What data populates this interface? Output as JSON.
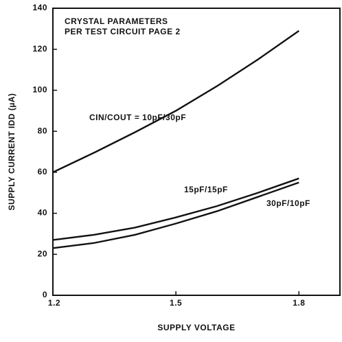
{
  "chart_data": {
    "type": "line",
    "annotations": [
      "CRYSTAL PARAMETERS",
      "PER TEST CIRCUIT PAGE 2"
    ],
    "x_label": "SUPPLY VOLTAGE",
    "y_label": "SUPPLY CURRENT IDD (µA)",
    "x": [
      1.2,
      1.3,
      1.4,
      1.5,
      1.6,
      1.7,
      1.8
    ],
    "series": [
      {
        "name": "CIN/COUT = 10pF/30pF",
        "color": "#111111",
        "values": [
          60,
          69.5,
          79.5,
          90,
          102,
          115,
          129
        ]
      },
      {
        "name": "15pF/15pF",
        "color": "#111111",
        "values": [
          27,
          29.5,
          33,
          38,
          43.5,
          50,
          57
        ]
      },
      {
        "name": "30pF/10pF",
        "color": "#111111",
        "values": [
          23,
          25.5,
          29.5,
          35,
          41,
          48,
          55
        ]
      }
    ],
    "xlim": [
      1.2,
      1.9
    ],
    "xticks": [
      1.2,
      1.5,
      1.8
    ],
    "ylim": [
      0,
      140
    ],
    "yticks": [
      0,
      20,
      40,
      60,
      80,
      100,
      120,
      140
    ],
    "grid": false
  }
}
